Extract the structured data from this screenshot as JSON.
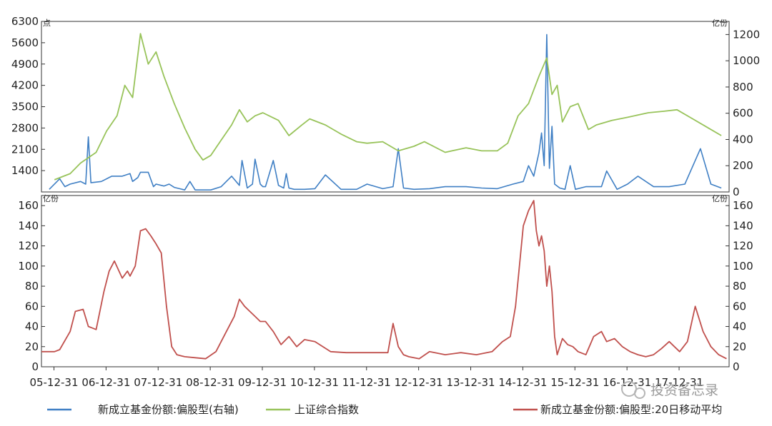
{
  "chart_data": [
    {
      "type": "line",
      "panel": "top",
      "left_unit": "点",
      "right_unit": "亿份",
      "left_ticks": [
        "6300",
        "5600",
        "4900",
        "4200",
        "3500",
        "2800",
        "2100",
        "1400"
      ],
      "right_ticks": [
        "1200",
        "1000",
        "800",
        "600",
        "400",
        "200",
        "0"
      ],
      "ylim_left": [
        700,
        6300
      ],
      "ylim_right": [
        0,
        1300
      ],
      "grid": false,
      "series": [
        {
          "name": "上证综合指数",
          "axis": "left",
          "color": "#98c35a",
          "x": [
            2006.0,
            2006.3,
            2006.5,
            2006.8,
            2007.0,
            2007.2,
            2007.35,
            2007.5,
            2007.65,
            2007.8,
            2007.95,
            2008.1,
            2008.3,
            2008.5,
            2008.7,
            2008.85,
            2009.0,
            2009.2,
            2009.4,
            2009.55,
            2009.7,
            2009.85,
            2010.0,
            2010.3,
            2010.5,
            2010.75,
            2010.9,
            2011.2,
            2011.5,
            2011.8,
            2012.0,
            2012.3,
            2012.6,
            2012.9,
            2013.1,
            2013.5,
            2013.9,
            2014.2,
            2014.5,
            2014.7,
            2014.9,
            2015.1,
            2015.3,
            2015.45,
            2015.55,
            2015.65,
            2015.75,
            2015.9,
            2016.05,
            2016.25,
            2016.4,
            2016.7,
            2017.0,
            2017.4,
            2017.7,
            2017.95,
            2018.2,
            2018.5,
            2018.8
          ],
          "values": [
            1100,
            1300,
            1650,
            2000,
            2700,
            3200,
            4200,
            3800,
            5900,
            4900,
            5300,
            4500,
            3600,
            2800,
            2100,
            1750,
            1900,
            2400,
            2900,
            3400,
            3000,
            3200,
            3300,
            3050,
            2550,
            2900,
            3100,
            2900,
            2600,
            2350,
            2300,
            2350,
            2050,
            2200,
            2350,
            2000,
            2150,
            2050,
            2050,
            2300,
            3200,
            3600,
            4500,
            5100,
            3900,
            4200,
            3000,
            3500,
            3600,
            2750,
            2900,
            3050,
            3150,
            3300,
            3350,
            3400,
            3150,
            2850,
            2550
          ]
        },
        {
          "name": "新成立基金份额:偏股型(右轴)",
          "axis": "right",
          "color": "#3f7fc4",
          "x": [
            2005.9,
            2006.1,
            2006.2,
            2006.3,
            2006.5,
            2006.6,
            2006.65,
            2006.7,
            2006.9,
            2007.1,
            2007.3,
            2007.45,
            2007.5,
            2007.6,
            2007.65,
            2007.8,
            2007.9,
            2007.95,
            2008.1,
            2008.2,
            2008.3,
            2008.4,
            2008.5,
            2008.6,
            2008.7,
            2008.8,
            2009.0,
            2009.2,
            2009.4,
            2009.55,
            2009.6,
            2009.7,
            2009.8,
            2009.85,
            2009.95,
            2010.0,
            2010.05,
            2010.2,
            2010.3,
            2010.4,
            2010.45,
            2010.5,
            2010.6,
            2010.8,
            2011.0,
            2011.2,
            2011.5,
            2011.8,
            2012.0,
            2012.3,
            2012.5,
            2012.6,
            2012.7,
            2012.9,
            2013.2,
            2013.5,
            2013.9,
            2014.2,
            2014.5,
            2014.8,
            2015.0,
            2015.1,
            2015.2,
            2015.3,
            2015.35,
            2015.4,
            2015.45,
            2015.5,
            2015.55,
            2015.6,
            2015.7,
            2015.8,
            2015.9,
            2016.0,
            2016.2,
            2016.5,
            2016.6,
            2016.8,
            2017.0,
            2017.2,
            2017.5,
            2017.8,
            2018.1,
            2018.4,
            2018.6,
            2018.8
          ],
          "values": [
            20,
            100,
            40,
            60,
            80,
            60,
            420,
            70,
            80,
            120,
            120,
            140,
            80,
            110,
            150,
            150,
            40,
            60,
            45,
            60,
            35,
            25,
            15,
            80,
            15,
            15,
            15,
            40,
            120,
            50,
            240,
            30,
            60,
            250,
            60,
            40,
            40,
            240,
            50,
            30,
            140,
            30,
            20,
            20,
            25,
            130,
            20,
            20,
            60,
            25,
            40,
            330,
            30,
            20,
            25,
            40,
            40,
            30,
            25,
            60,
            80,
            200,
            120,
            300,
            450,
            200,
            1200,
            180,
            500,
            60,
            30,
            20,
            200,
            20,
            40,
            40,
            160,
            20,
            60,
            120,
            40,
            40,
            60,
            330,
            60,
            30
          ]
        }
      ]
    },
    {
      "type": "line",
      "panel": "bottom",
      "left_unit": "亿份",
      "right_unit": "亿份",
      "left_ticks": [
        "160",
        "140",
        "120",
        "100",
        "80",
        "60",
        "40",
        "20",
        "0"
      ],
      "right_ticks": [
        "160",
        "140",
        "120",
        "100",
        "80",
        "60",
        "40",
        "20",
        "0"
      ],
      "ylim": [
        0,
        170
      ],
      "xlim": [
        2005.75,
        2018.95
      ],
      "x_tick_labels": [
        "05-12-31",
        "06-12-31",
        "07-12-31",
        "08-12-31",
        "09-12-31",
        "10-12-31",
        "11-12-31",
        "12-12-31",
        "13-12-31",
        "14-12-31",
        "15-12-31",
        "16-12-31",
        "17-12-31"
      ],
      "grid": false,
      "series": [
        {
          "name": "新成立基金份额:偏股型:20日移动平均",
          "axis": "left",
          "color": "#c0504d",
          "x": [
            2005.75,
            2006.0,
            2006.1,
            2006.3,
            2006.4,
            2006.55,
            2006.65,
            2006.8,
            2006.95,
            2007.05,
            2007.15,
            2007.3,
            2007.4,
            2007.45,
            2007.55,
            2007.65,
            2007.75,
            2007.85,
            2007.95,
            2008.05,
            2008.15,
            2008.25,
            2008.35,
            2008.5,
            2008.7,
            2008.9,
            2009.1,
            2009.3,
            2009.45,
            2009.55,
            2009.65,
            2009.75,
            2009.85,
            2009.95,
            2010.05,
            2010.2,
            2010.35,
            2010.5,
            2010.65,
            2010.8,
            2011.0,
            2011.3,
            2011.6,
            2011.9,
            2012.1,
            2012.4,
            2012.5,
            2012.6,
            2012.7,
            2012.8,
            2013.0,
            2013.2,
            2013.5,
            2013.8,
            2014.1,
            2014.4,
            2014.6,
            2014.75,
            2014.85,
            2015.0,
            2015.1,
            2015.2,
            2015.25,
            2015.3,
            2015.35,
            2015.4,
            2015.45,
            2015.5,
            2015.55,
            2015.6,
            2015.65,
            2015.75,
            2015.85,
            2015.95,
            2016.05,
            2016.2,
            2016.35,
            2016.5,
            2016.6,
            2016.75,
            2016.9,
            2017.05,
            2017.2,
            2017.35,
            2017.5,
            2017.65,
            2017.8,
            2017.9,
            2018.0,
            2018.15,
            2018.3,
            2018.45,
            2018.6,
            2018.75,
            2018.9
          ],
          "values": [
            15,
            15,
            17,
            35,
            55,
            57,
            40,
            37,
            75,
            95,
            105,
            88,
            95,
            90,
            100,
            135,
            137,
            130,
            122,
            113,
            60,
            20,
            12,
            10,
            9,
            8,
            15,
            35,
            50,
            67,
            60,
            55,
            50,
            45,
            45,
            35,
            22,
            30,
            20,
            27,
            25,
            15,
            14,
            14,
            14,
            14,
            43,
            20,
            12,
            10,
            8,
            15,
            12,
            14,
            12,
            15,
            25,
            30,
            60,
            140,
            155,
            165,
            135,
            120,
            130,
            115,
            80,
            100,
            75,
            30,
            12,
            28,
            22,
            20,
            15,
            12,
            30,
            35,
            25,
            28,
            20,
            15,
            12,
            10,
            12,
            18,
            25,
            20,
            15,
            25,
            60,
            35,
            20,
            12,
            8
          ]
        }
      ]
    }
  ],
  "legend": [
    {
      "label": "新成立基金份额:偏股型(右轴)",
      "color": "#3f7fc4"
    },
    {
      "label": "上证综合指数",
      "color": "#98c35a"
    },
    {
      "label": "新成立基金份额:偏股型:20日移动平均",
      "color": "#c0504d"
    }
  ],
  "watermark": "投资备忘录"
}
